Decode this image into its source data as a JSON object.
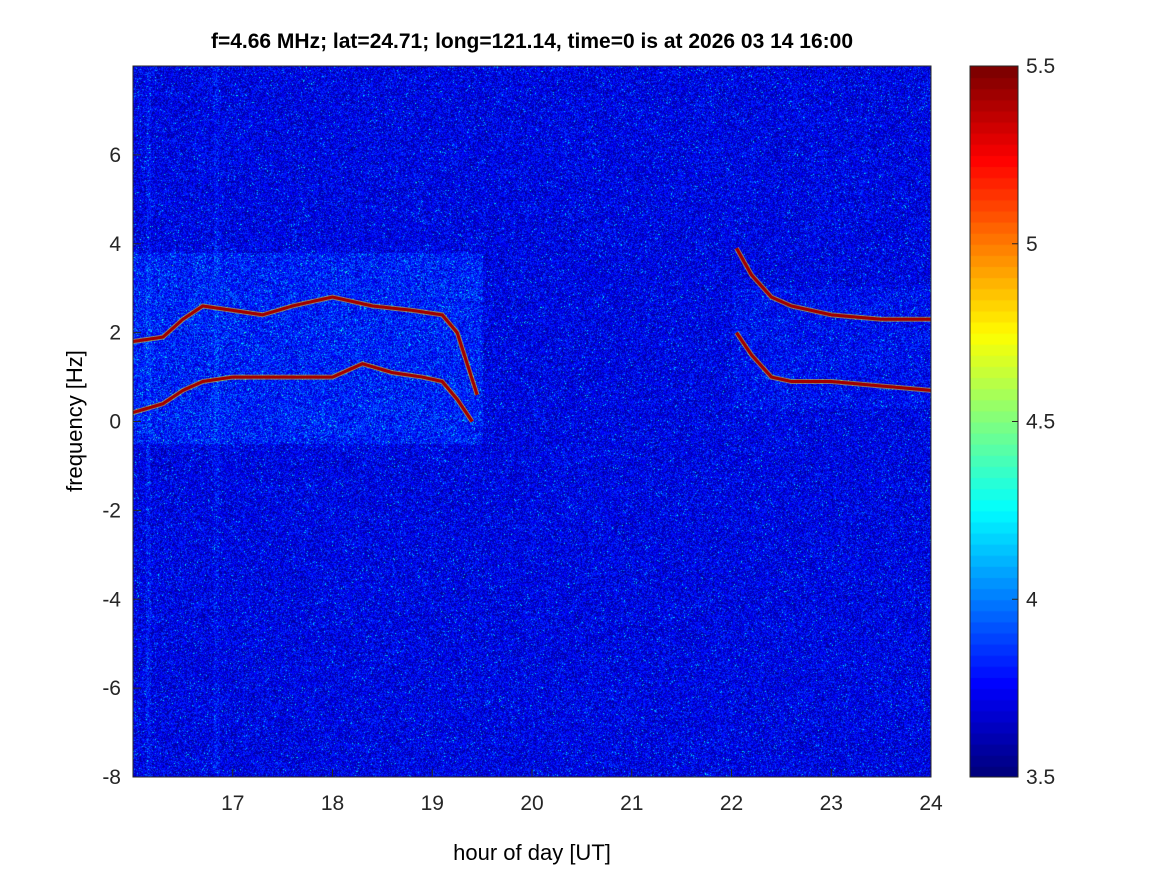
{
  "chart_data": {
    "type": "heatmap",
    "title": "f=4.66 MHz;  lat=24.71; long=121.14, time=0 is at 2026 03 14 16:00",
    "xlabel": "hour of day [UT]",
    "ylabel": "frequency [Hz]",
    "xlim": [
      16,
      24
    ],
    "ylim": [
      -8,
      8
    ],
    "xticks": [
      17,
      18,
      19,
      20,
      21,
      22,
      23,
      24
    ],
    "yticks": [
      -8,
      -6,
      -4,
      -2,
      0,
      2,
      4,
      6
    ],
    "colorbar": {
      "limits": [
        3.5,
        5.5
      ],
      "ticks": [
        3.5,
        4,
        4.5,
        5,
        5.5
      ],
      "colormap": "jet"
    },
    "background_level": 3.7,
    "traces": [
      {
        "name": "upper-trace-night1",
        "x": [
          16.0,
          16.3,
          16.5,
          16.7,
          17.0,
          17.3,
          17.6,
          18.0,
          18.4,
          18.8,
          19.1,
          19.25,
          19.35,
          19.45
        ],
        "y": [
          1.8,
          1.9,
          2.3,
          2.6,
          2.5,
          2.4,
          2.6,
          2.8,
          2.6,
          2.5,
          2.4,
          2.0,
          1.3,
          0.6
        ]
      },
      {
        "name": "lower-trace-night1",
        "x": [
          16.0,
          16.3,
          16.5,
          16.7,
          17.0,
          17.5,
          18.0,
          18.3,
          18.6,
          18.9,
          19.1,
          19.25,
          19.4
        ],
        "y": [
          0.2,
          0.4,
          0.7,
          0.9,
          1.0,
          1.0,
          1.0,
          1.3,
          1.1,
          1.0,
          0.9,
          0.5,
          0.0
        ]
      },
      {
        "name": "upper-trace-night2",
        "x": [
          22.05,
          22.2,
          22.4,
          22.6,
          23.0,
          23.5,
          24.0
        ],
        "y": [
          3.9,
          3.3,
          2.8,
          2.6,
          2.4,
          2.3,
          2.3
        ]
      },
      {
        "name": "lower-trace-night2",
        "x": [
          22.05,
          22.2,
          22.4,
          22.6,
          23.0,
          23.5,
          24.0
        ],
        "y": [
          2.0,
          1.5,
          1.0,
          0.9,
          0.9,
          0.8,
          0.7
        ]
      }
    ],
    "trace_level": 5.5
  }
}
